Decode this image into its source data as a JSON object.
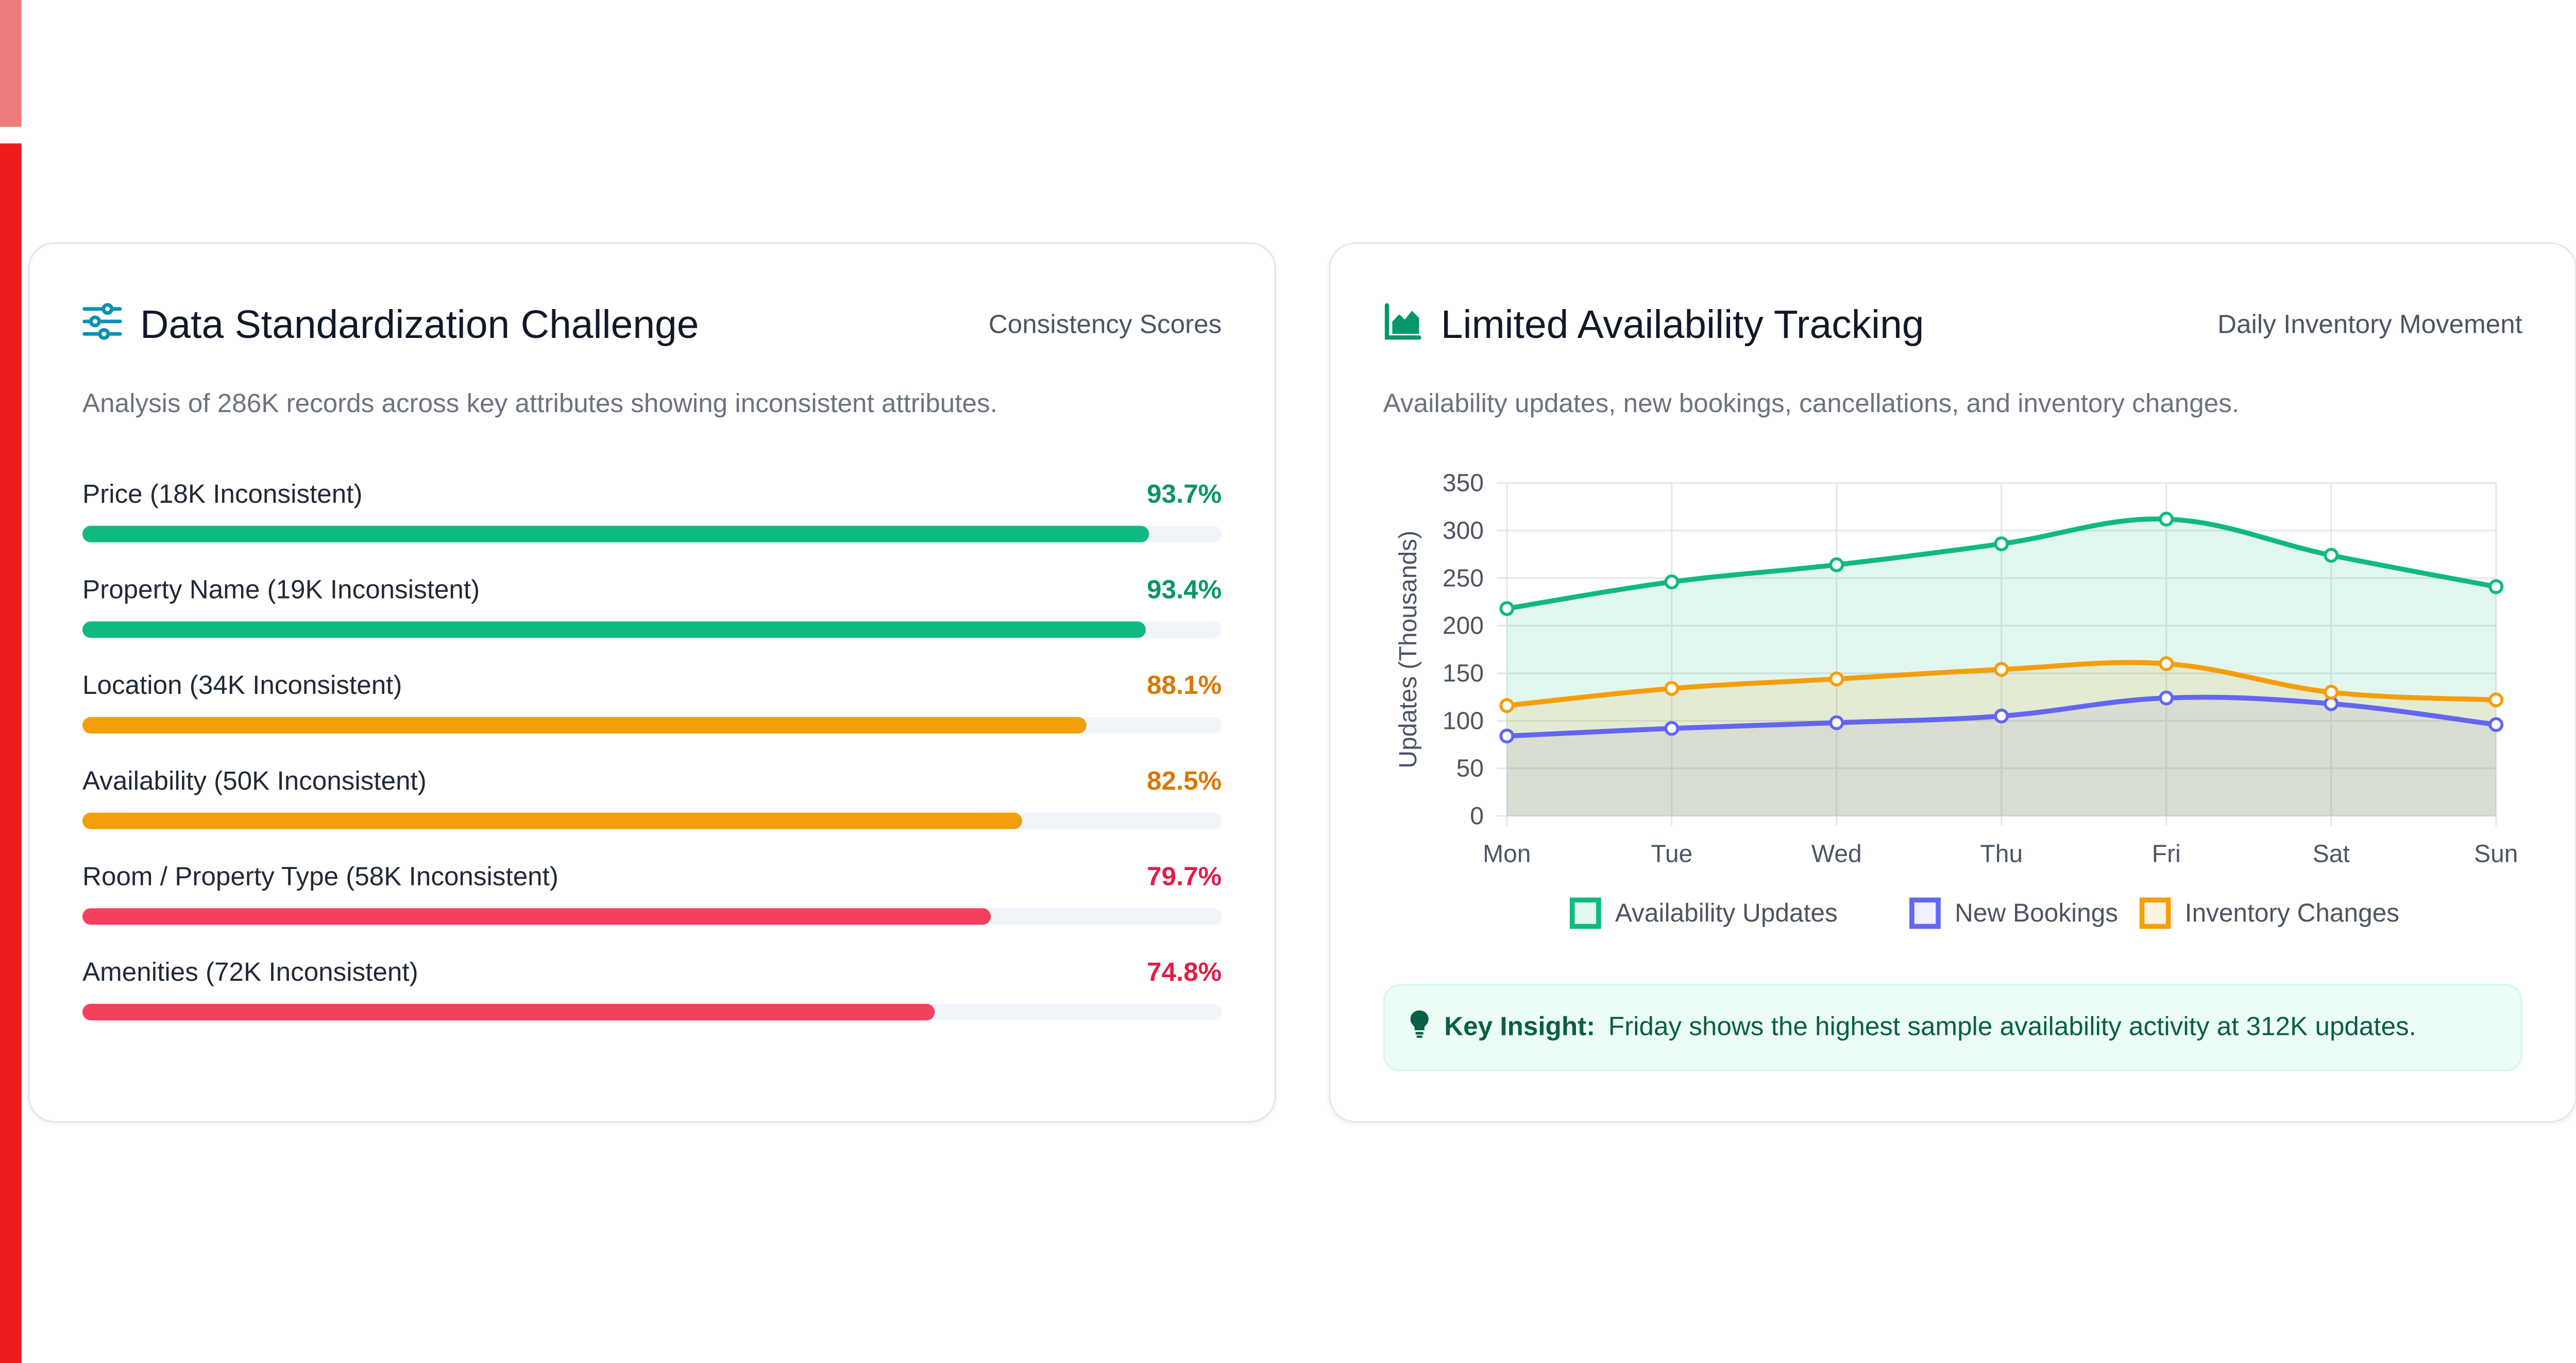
{
  "colors": {
    "green": "#10b981",
    "amber": "#f59e0b",
    "red": "#f43f5e",
    "indigo": "#6366f1",
    "teal": "#0891b2"
  },
  "left_card": {
    "title": "Data Standardization Challenge",
    "meta": "Consistency Scores",
    "subtitle": "Analysis of 286K records across key attributes showing inconsistent attributes.",
    "icon": "sliders-icon",
    "metrics": [
      {
        "label": "Price (18K Inconsistent)",
        "value_text": "93.7%",
        "value": 93.7,
        "color": "#10b981",
        "text_color": "#059669"
      },
      {
        "label": "Property Name (19K Inconsistent)",
        "value_text": "93.4%",
        "value": 93.4,
        "color": "#10b981",
        "text_color": "#059669"
      },
      {
        "label": "Location (34K Inconsistent)",
        "value_text": "88.1%",
        "value": 88.1,
        "color": "#f59e0b",
        "text_color": "#d97706"
      },
      {
        "label": "Availability (50K Inconsistent)",
        "value_text": "82.5%",
        "value": 82.5,
        "color": "#f59e0b",
        "text_color": "#d97706"
      },
      {
        "label": "Room / Property Type (58K Inconsistent)",
        "value_text": "79.7%",
        "value": 79.7,
        "color": "#f43f5e",
        "text_color": "#e11d48"
      },
      {
        "label": "Amenities (72K Inconsistent)",
        "value_text": "74.8%",
        "value": 74.8,
        "color": "#f43f5e",
        "text_color": "#e11d48"
      }
    ]
  },
  "right_card": {
    "title": "Limited Availability Tracking",
    "meta": "Daily Inventory Movement",
    "subtitle": "Availability updates, new bookings, cancellations, and inventory changes.",
    "icon": "area-chart-icon",
    "insight": {
      "icon": "lightbulb-icon",
      "label": "Key Insight:",
      "text": "Friday shows the highest sample availability activity at 312K updates."
    }
  },
  "chart_data": {
    "type": "area",
    "categories": [
      "Mon",
      "Tue",
      "Wed",
      "Thu",
      "Fri",
      "Sat",
      "Sun"
    ],
    "ylabel": "Updates (Thousands)",
    "ylim": [
      0,
      350
    ],
    "yticks": [
      0,
      50,
      100,
      150,
      200,
      250,
      300,
      350
    ],
    "grid": true,
    "legend_position": "bottom",
    "series": [
      {
        "name": "Availability Updates",
        "values": [
          218,
          246,
          264,
          286,
          312,
          274,
          241
        ],
        "color": "#10b981",
        "fill": "rgba(16,185,129,0.12)"
      },
      {
        "name": "New Bookings",
        "values": [
          84,
          92,
          98,
          105,
          124,
          118,
          96
        ],
        "color": "#6366f1",
        "fill": "rgba(99,102,241,0.10)"
      },
      {
        "name": "Inventory Changes",
        "values": [
          116,
          134,
          144,
          154,
          160,
          130,
          122
        ],
        "color": "#f59e0b",
        "fill": "rgba(245,158,11,0.12)"
      }
    ]
  }
}
